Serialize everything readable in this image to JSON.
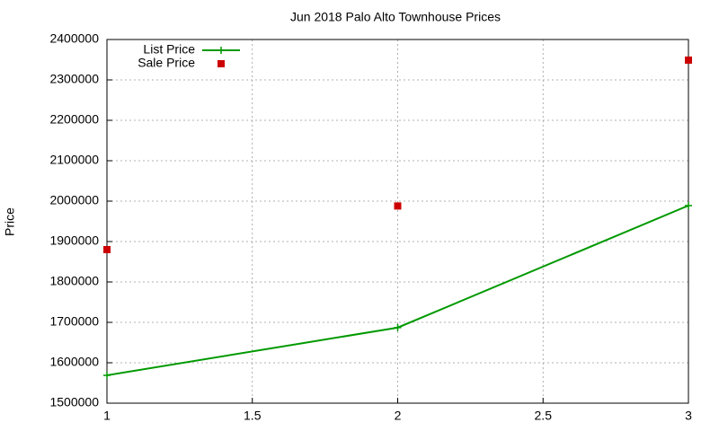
{
  "chart_data": {
    "type": "line",
    "title": "Jun 2018 Palo Alto Townhouse Prices",
    "y_label": "Price",
    "x": [
      1,
      2,
      3
    ],
    "series": [
      {
        "name": "List Price",
        "color": "#009900",
        "style": "linespoints",
        "values": [
          1569000,
          1687000,
          1989000
        ]
      },
      {
        "name": "Sale Price",
        "color": "#cc0000",
        "style": "points",
        "values": [
          1880000,
          1988000,
          2349000
        ]
      }
    ],
    "xlim": [
      1,
      3
    ],
    "xticks": [
      1,
      1.5,
      2,
      2.5,
      3
    ],
    "ylim": [
      1500000,
      2400000
    ],
    "yticks": [
      1500000,
      1600000,
      1700000,
      1800000,
      1900000,
      2000000,
      2100000,
      2200000,
      2300000,
      2400000
    ],
    "grid": true,
    "legend": "top-left"
  }
}
